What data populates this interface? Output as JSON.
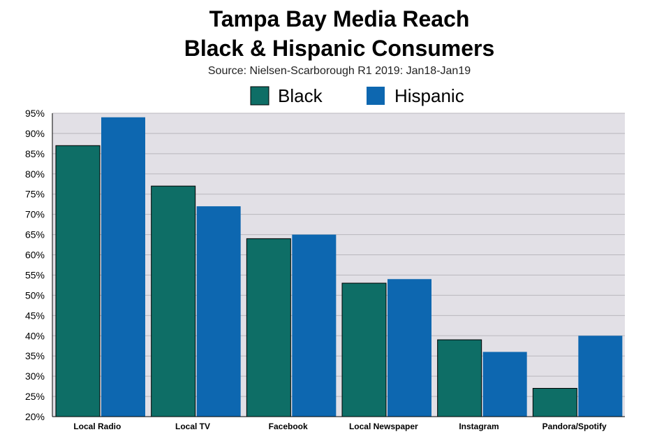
{
  "chart_data": {
    "type": "bar",
    "title": "Tampa Bay Media Reach",
    "title_line2": "Black & Hispanic Consumers",
    "subtitle": "Source: Nielsen-Scarborough R1 2019: Jan18-Jan19",
    "xlabel": "",
    "ylabel": "",
    "categories": [
      "Local Radio",
      "Local TV",
      "Facebook",
      "Local Newspaper",
      "Instagram",
      "Pandora/Spotify"
    ],
    "series": [
      {
        "name": "Black",
        "color": "#0e6e66",
        "values": [
          87,
          77,
          64,
          53,
          39,
          27
        ]
      },
      {
        "name": "Hispanic",
        "color": "#0d67b0",
        "values": [
          94,
          72,
          65,
          54,
          36,
          40
        ]
      }
    ],
    "ylim": [
      20,
      95
    ],
    "yticks": [
      "20%",
      "25%",
      "30%",
      "35%",
      "40%",
      "45%",
      "50%",
      "55%",
      "60%",
      "65%",
      "70%",
      "75%",
      "80%",
      "85%",
      "90%",
      "95%"
    ],
    "ytick_values": [
      20,
      25,
      30,
      35,
      40,
      45,
      50,
      55,
      60,
      65,
      70,
      75,
      80,
      85,
      90,
      95
    ],
    "grid": true,
    "legend_position": "top-center",
    "plot_background": "#e2e0e6"
  }
}
